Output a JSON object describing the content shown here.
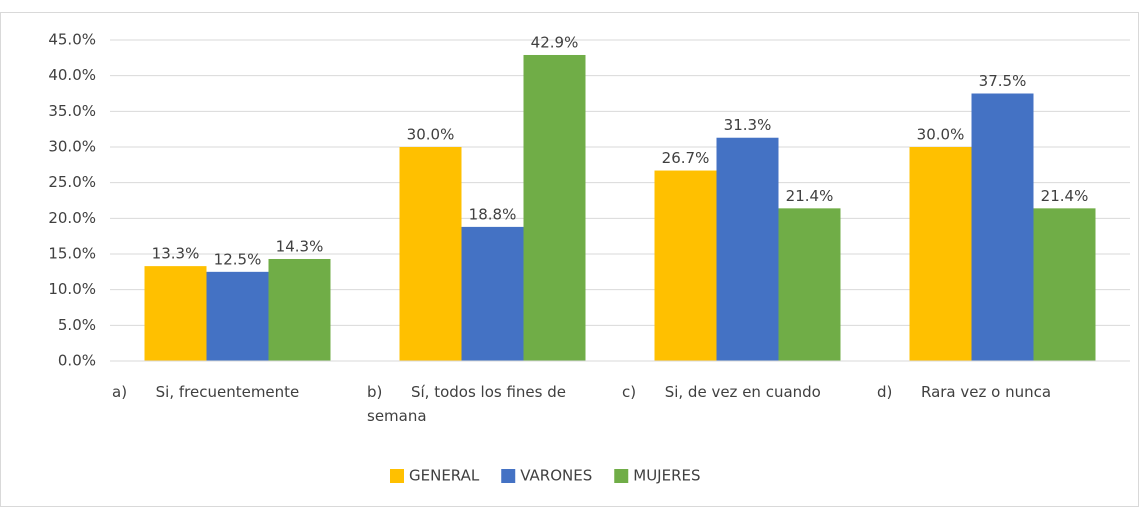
{
  "chart_data": {
    "type": "bar",
    "categories": [
      "a)      Si, frecuentemente",
      "b)      Sí, todos los fines de semana",
      "c)      Si, de vez en cuando",
      "d)      Rara vez o nunca"
    ],
    "series": [
      {
        "name": "GENERAL",
        "color": "#ffc000",
        "values": [
          13.3,
          30.0,
          26.7,
          30.0
        ],
        "value_labels": [
          "13.3%",
          "30.0%",
          "26.7%",
          "30.0%"
        ]
      },
      {
        "name": "VARONES",
        "color": "#4472c4",
        "values": [
          12.5,
          18.8,
          31.3,
          37.5
        ],
        "value_labels": [
          "12.5%",
          "18.8%",
          "31.3%",
          "37.5%"
        ]
      },
      {
        "name": "MUJERES",
        "color": "#70ad47",
        "values": [
          14.3,
          42.9,
          21.4,
          21.4
        ],
        "value_labels": [
          "14.3%",
          "42.9%",
          "21.4%",
          "21.4%"
        ]
      }
    ],
    "ylim": [
      0,
      45
    ],
    "yticks": [
      {
        "value": 0,
        "label": "0.0%"
      },
      {
        "value": 5,
        "label": "5.0%"
      },
      {
        "value": 10,
        "label": "10.0%"
      },
      {
        "value": 15,
        "label": "15.0%"
      },
      {
        "value": 20,
        "label": "20.0%"
      },
      {
        "value": 25,
        "label": "25.0%"
      },
      {
        "value": 30,
        "label": "30.0%"
      },
      {
        "value": 35,
        "label": "35.0%"
      },
      {
        "value": 40,
        "label": "40.0%"
      },
      {
        "value": 45,
        "label": "45.0%"
      }
    ],
    "grid": true,
    "legend": "bottom"
  }
}
